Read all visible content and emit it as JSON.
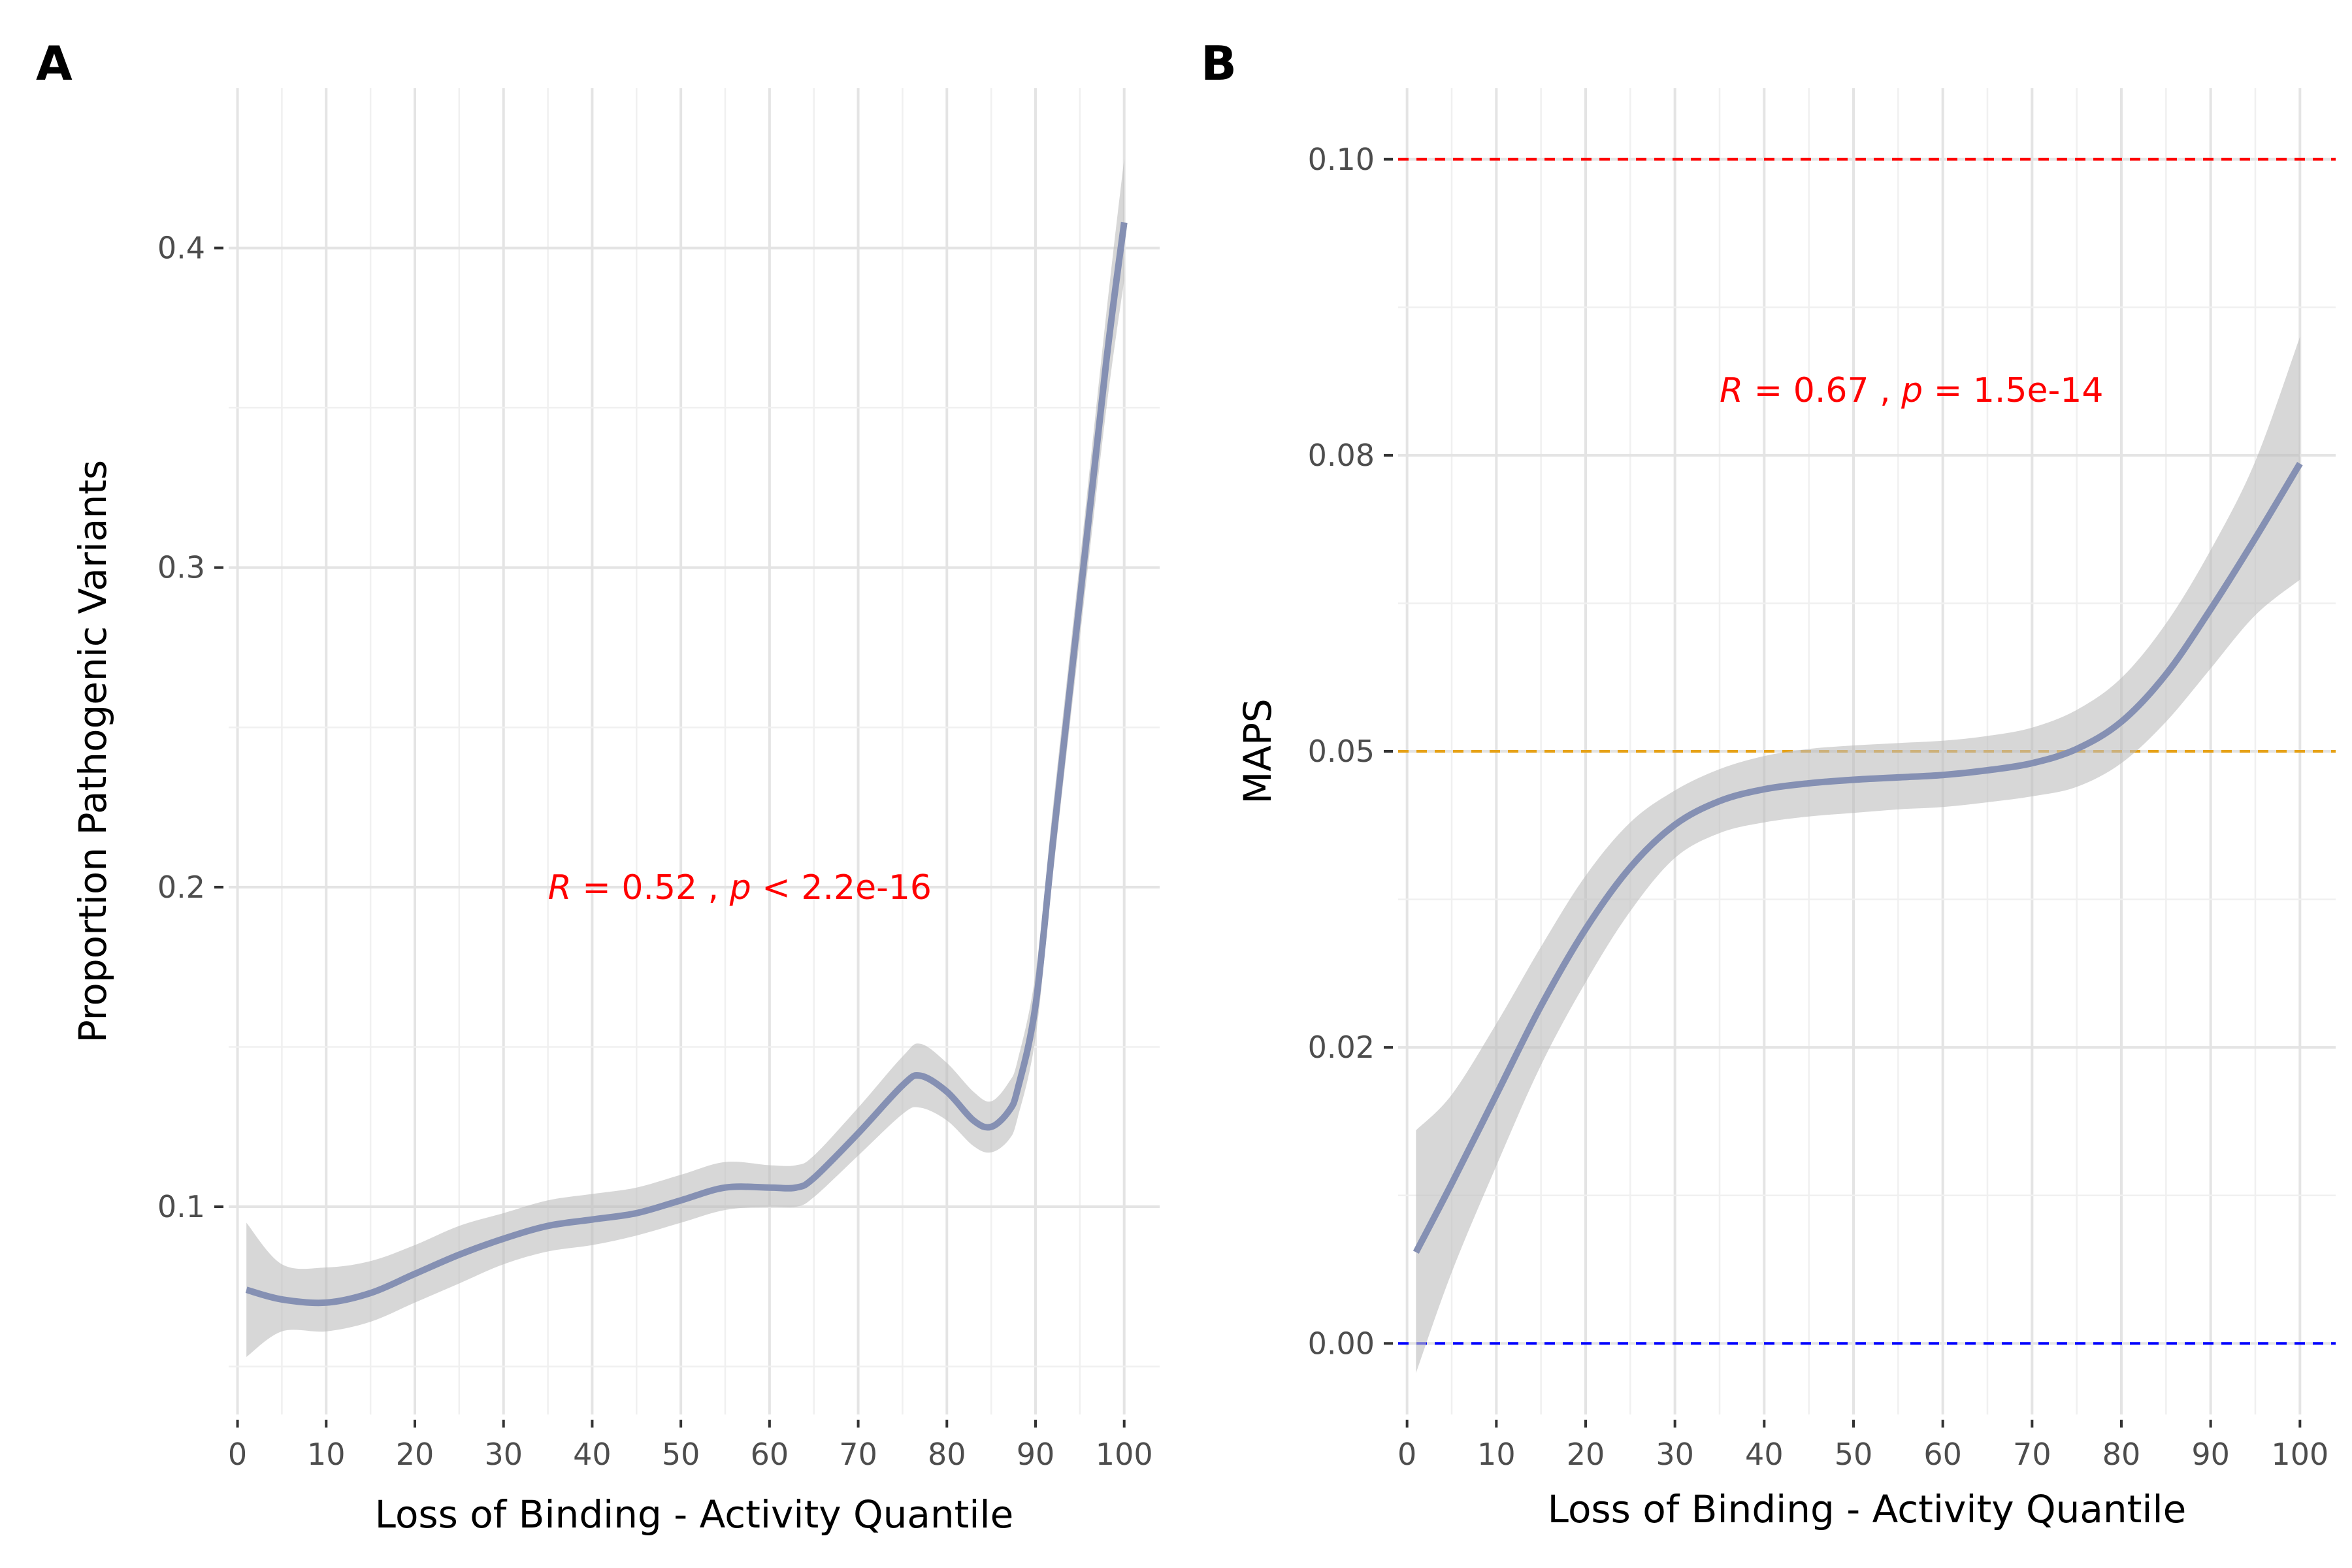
{
  "chart_data": [
    {
      "type": "line",
      "panel_label": "A",
      "xlabel": "Loss of Binding - Activity Quantile",
      "ylabel": "Proportion Pathogenic Variants",
      "xlim": [
        -1,
        104
      ],
      "ylim": [
        0.035,
        0.45
      ],
      "x_ticks": [
        0,
        10,
        20,
        30,
        40,
        50,
        60,
        70,
        80,
        90,
        100
      ],
      "y_ticks": [
        0.1,
        0.2,
        0.3,
        0.4
      ],
      "x_tick_labels": [
        "0",
        "10",
        "20",
        "30",
        "40",
        "50",
        "60",
        "70",
        "80",
        "90",
        "100"
      ],
      "y_tick_labels": [
        "0.1",
        "0.2",
        "0.3",
        "0.4"
      ],
      "grid": true,
      "line_color": "#8590b3",
      "ribbon_color": "#bdbdbd",
      "annotation": {
        "x": 35,
        "y": 0.2,
        "r_value": "0.52",
        "p_op": "<",
        "p_value": "2.2e-16",
        "color": "#ff0000"
      },
      "series": [
        {
          "x": [
            1,
            5,
            10,
            15,
            20,
            25,
            30,
            35,
            40,
            45,
            50,
            55,
            60,
            63,
            65,
            70,
            75,
            77,
            80,
            83,
            85,
            87,
            88,
            90,
            92,
            95,
            98,
            100
          ],
          "y": [
            0.074,
            0.071,
            0.07,
            0.073,
            0.079,
            0.085,
            0.09,
            0.094,
            0.096,
            0.098,
            0.102,
            0.106,
            0.106,
            0.106,
            0.109,
            0.123,
            0.138,
            0.141,
            0.136,
            0.127,
            0.125,
            0.13,
            0.137,
            0.163,
            0.215,
            0.29,
            0.365,
            0.408
          ],
          "lower": [
            0.053,
            0.061,
            0.061,
            0.064,
            0.07,
            0.076,
            0.082,
            0.086,
            0.088,
            0.091,
            0.095,
            0.099,
            0.1,
            0.1,
            0.103,
            0.116,
            0.129,
            0.131,
            0.127,
            0.119,
            0.117,
            0.121,
            0.128,
            0.153,
            0.205,
            0.278,
            0.35,
            0.39
          ],
          "upper": [
            0.095,
            0.082,
            0.081,
            0.083,
            0.088,
            0.094,
            0.098,
            0.102,
            0.104,
            0.106,
            0.11,
            0.114,
            0.113,
            0.113,
            0.116,
            0.131,
            0.147,
            0.151,
            0.145,
            0.136,
            0.133,
            0.139,
            0.146,
            0.173,
            0.226,
            0.302,
            0.38,
            0.428
          ]
        }
      ]
    },
    {
      "type": "line",
      "panel_label": "B",
      "xlabel": "Loss of Binding - Activity Quantile",
      "ylabel": "MAPS",
      "xlim": [
        -1,
        104
      ],
      "ylim": [
        -0.006,
        0.106
      ],
      "x_ticks": [
        0,
        10,
        20,
        30,
        40,
        50,
        60,
        70,
        80,
        90,
        100
      ],
      "y_ticks": [
        0.0,
        0.025,
        0.05,
        0.075,
        0.1
      ],
      "x_tick_labels": [
        "0",
        "10",
        "20",
        "30",
        "40",
        "50",
        "60",
        "70",
        "80",
        "90",
        "100"
      ],
      "y_tick_labels": [
        "0.00",
        "0.02",
        "0.05",
        "0.08",
        "0.10"
      ],
      "grid": true,
      "line_color": "#8590b3",
      "ribbon_color": "#bdbdbd",
      "reference_lines": [
        {
          "y": 0.1,
          "color": "#ff0000"
        },
        {
          "y": 0.05,
          "color": "#e6a117"
        },
        {
          "y": 0.0,
          "color": "#0000ff"
        }
      ],
      "annotation": {
        "x": 35,
        "y": 0.0805,
        "r_value": "0.67",
        "p_op": "=",
        "p_value": "1.5e-14",
        "color": "#ff0000"
      },
      "series": [
        {
          "x": [
            1,
            5,
            10,
            15,
            20,
            25,
            30,
            35,
            40,
            45,
            50,
            55,
            60,
            65,
            70,
            75,
            80,
            85,
            90,
            95,
            100
          ],
          "y": [
            0.0077,
            0.0135,
            0.021,
            0.0285,
            0.035,
            0.0402,
            0.0438,
            0.0458,
            0.0468,
            0.0473,
            0.0476,
            0.0478,
            0.048,
            0.0484,
            0.049,
            0.0502,
            0.0525,
            0.0565,
            0.062,
            0.068,
            0.0743
          ],
          "lower": [
            -0.0025,
            0.006,
            0.015,
            0.0235,
            0.0305,
            0.0365,
            0.041,
            0.0431,
            0.044,
            0.0445,
            0.0448,
            0.0451,
            0.0453,
            0.0457,
            0.0462,
            0.047,
            0.049,
            0.0525,
            0.057,
            0.0615,
            0.0645
          ],
          "upper": [
            0.018,
            0.021,
            0.027,
            0.0335,
            0.0395,
            0.044,
            0.0467,
            0.0485,
            0.0496,
            0.0502,
            0.0505,
            0.0507,
            0.0509,
            0.0513,
            0.052,
            0.0535,
            0.0562,
            0.0608,
            0.067,
            0.0745,
            0.085
          ]
        }
      ]
    }
  ]
}
